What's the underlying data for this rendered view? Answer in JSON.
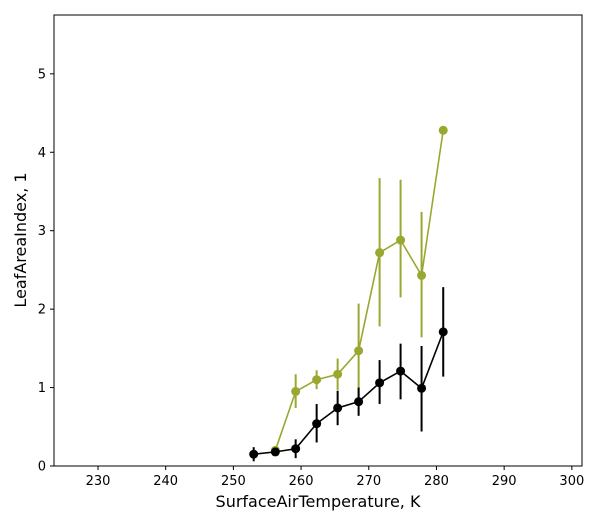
{
  "chart_data": {
    "type": "line",
    "xlabel": "SurfaceAirTemperature,  K",
    "ylabel": "LeafAreaIndex,  1",
    "xlim": [
      223.5,
      301.5
    ],
    "ylim": [
      0,
      5.75
    ],
    "xticks": [
      230,
      240,
      250,
      260,
      270,
      280,
      290,
      300
    ],
    "yticks": [
      0,
      1,
      2,
      3,
      4,
      5
    ],
    "grid": false,
    "series": [
      {
        "color": "#9aa832",
        "x": [
          256.2,
          259.2,
          262.3,
          265.4,
          268.5,
          271.6,
          274.7,
          277.8,
          281.0
        ],
        "y": [
          0.2,
          0.95,
          1.1,
          1.17,
          1.47,
          2.72,
          2.88,
          2.43,
          4.28
        ],
        "err_low": [
          0.15,
          0.74,
          0.98,
          0.97,
          0.87,
          1.78,
          2.15,
          1.64,
          4.28
        ],
        "err_high": [
          0.25,
          1.17,
          1.22,
          1.37,
          2.07,
          3.67,
          3.65,
          3.24,
          4.28
        ]
      },
      {
        "color": "#000000",
        "x": [
          253.0,
          256.2,
          259.2,
          262.3,
          265.4,
          268.5,
          271.6,
          274.7,
          277.8,
          281.0
        ],
        "y": [
          0.15,
          0.18,
          0.22,
          0.54,
          0.74,
          0.82,
          1.06,
          1.21,
          0.99,
          1.71
        ],
        "err_low": [
          0.06,
          0.15,
          0.1,
          0.3,
          0.52,
          0.64,
          0.79,
          0.85,
          0.44,
          1.14
        ],
        "err_high": [
          0.24,
          0.22,
          0.34,
          0.79,
          0.96,
          1.0,
          1.35,
          1.56,
          1.53,
          2.28
        ]
      }
    ]
  }
}
